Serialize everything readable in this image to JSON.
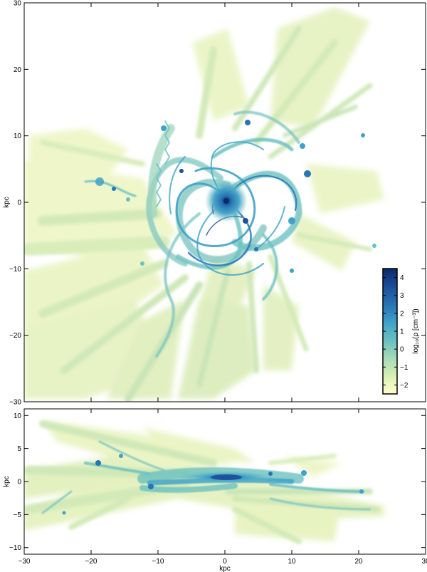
{
  "figure": {
    "top_panel": {
      "xlim": [
        -30,
        30
      ],
      "ylim": [
        -30,
        30
      ],
      "yticks": [
        -30,
        -20,
        -10,
        0,
        10,
        20,
        30
      ],
      "ylabel": "kpc",
      "tick_labels": [
        "−30",
        "−20",
        "−10",
        "0",
        "10",
        "20",
        "30"
      ]
    },
    "bottom_panel": {
      "xlim": [
        -30,
        30
      ],
      "ylim": [
        -11,
        11
      ],
      "yticks": [
        -10,
        -5,
        0,
        5,
        10
      ],
      "xticks": [
        -30,
        -20,
        -10,
        0,
        10,
        20,
        30
      ],
      "ylabel": "kpc",
      "xlabel": "kpc",
      "ytick_labels": [
        "−10",
        "−5",
        "0",
        "5",
        "10"
      ],
      "xtick_labels": [
        "−30",
        "−20",
        "−10",
        "0",
        "10",
        "20",
        "30"
      ]
    },
    "colorbar": {
      "label": "log₁₀(ρ [cm⁻³])",
      "range": [
        -2.5,
        4.5
      ],
      "ticks": [
        -2,
        -1,
        0,
        1,
        2,
        3,
        4
      ],
      "tick_labels": [
        "−2",
        "−1",
        "0",
        "1",
        "2",
        "3",
        "4"
      ],
      "colors": [
        "#ffffcc",
        "#d9f0b4",
        "#a7dcb6",
        "#6cc1c1",
        "#3fa2c8",
        "#2775b5",
        "#1d4f9b",
        "#0b2a6b"
      ]
    }
  }
}
